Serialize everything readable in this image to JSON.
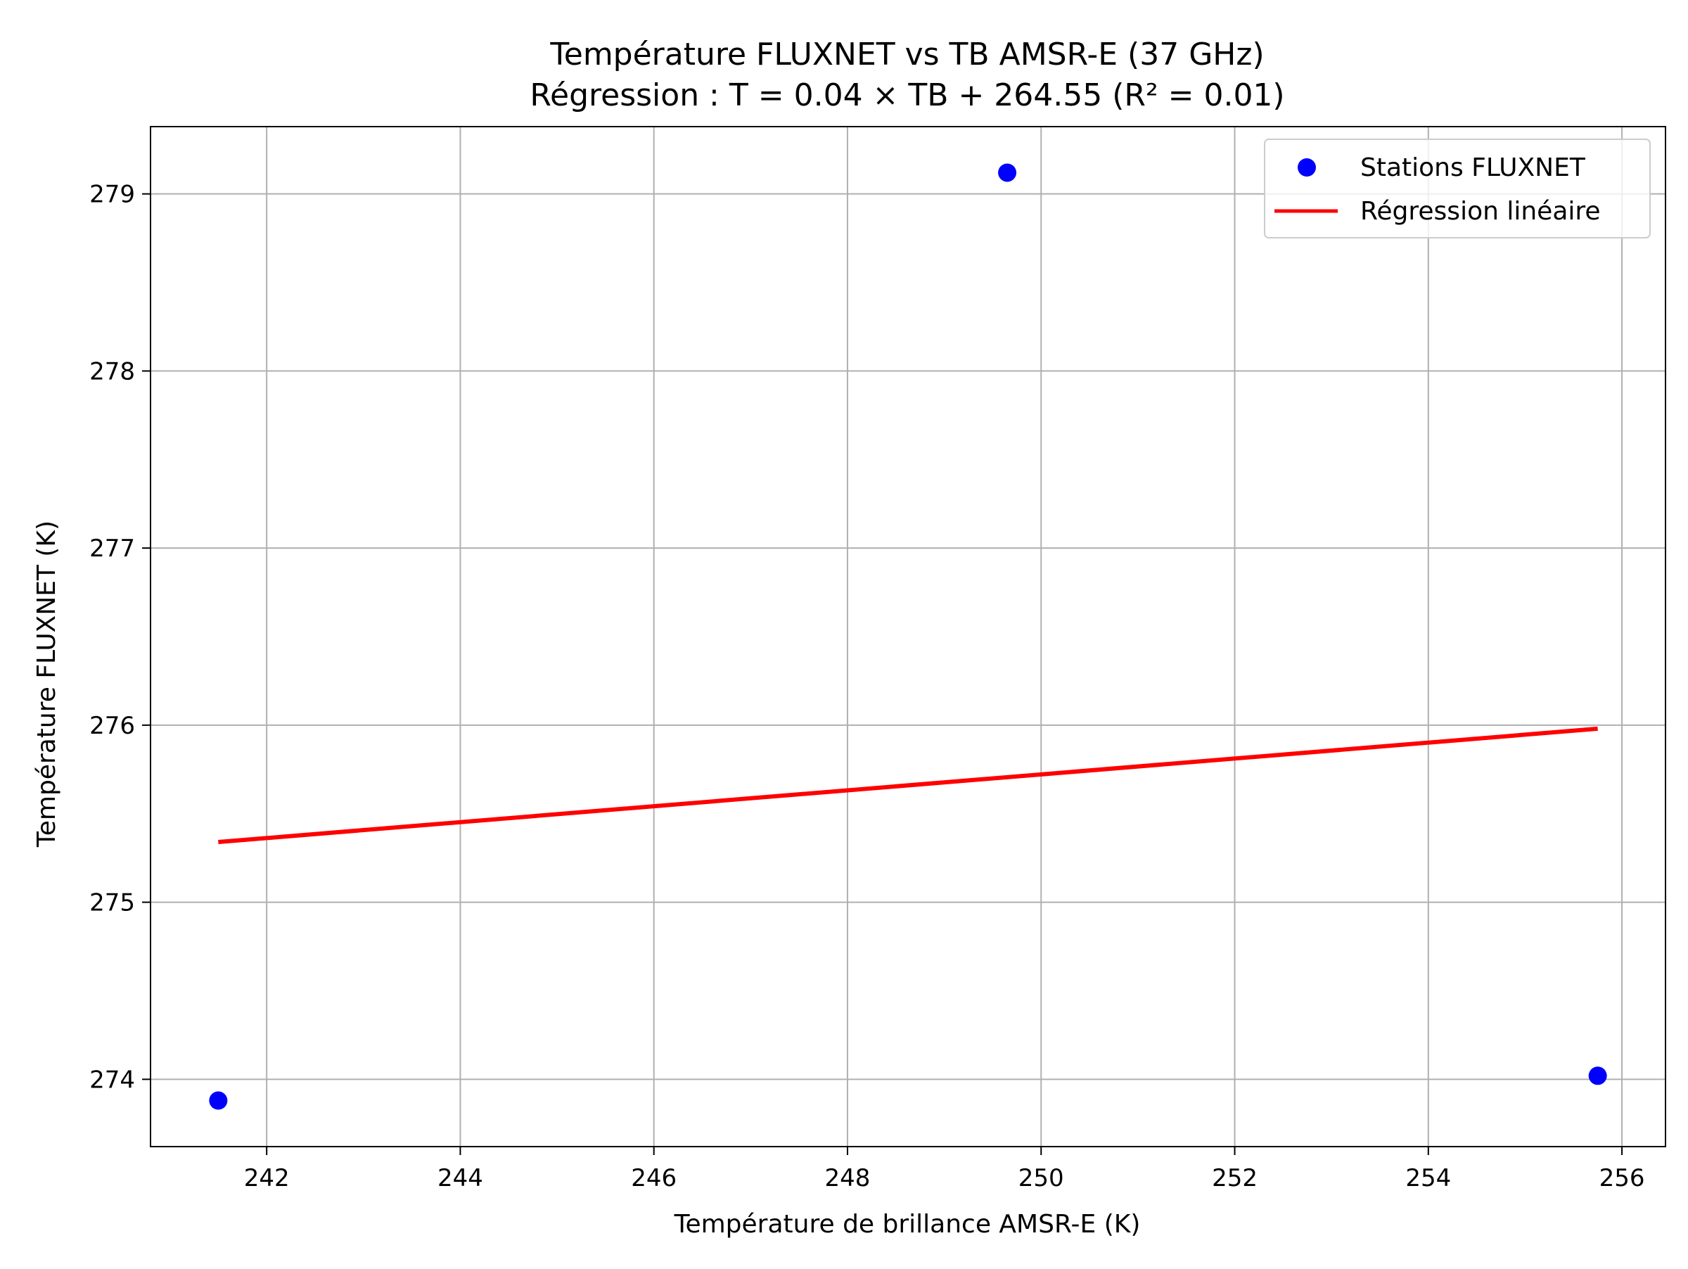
{
  "chart_data": {
    "type": "scatter",
    "title": "Température FLUXNET vs TB AMSR-E (37 GHz)",
    "subtitle": "Régression : T = 0.04 × TB + 264.55 (R² = 0.01)",
    "xlabel": "Température de brillance AMSR-E (K)",
    "ylabel": "Température FLUXNET (K)",
    "xlim": [
      240.8,
      256.45
    ],
    "ylim": [
      273.62,
      279.38
    ],
    "x_ticks": [
      242,
      244,
      246,
      248,
      250,
      252,
      254,
      256
    ],
    "y_ticks": [
      274,
      275,
      276,
      277,
      278,
      279
    ],
    "grid": true,
    "legend_position": "top-right",
    "series": [
      {
        "name": "Stations FLUXNET",
        "kind": "scatter",
        "color": "#0000ff",
        "points": [
          {
            "x": 241.5,
            "y": 273.88
          },
          {
            "x": 249.65,
            "y": 279.12
          },
          {
            "x": 255.75,
            "y": 274.02
          }
        ]
      },
      {
        "name": "Régression linéaire",
        "kind": "line",
        "color": "#ff0000",
        "points": [
          {
            "x": 241.5,
            "y": 275.34
          },
          {
            "x": 255.75,
            "y": 275.98
          }
        ]
      }
    ]
  },
  "colors": {
    "grid": "#b0b0b0",
    "axes": "#000000",
    "legend_border": "#cccccc"
  }
}
